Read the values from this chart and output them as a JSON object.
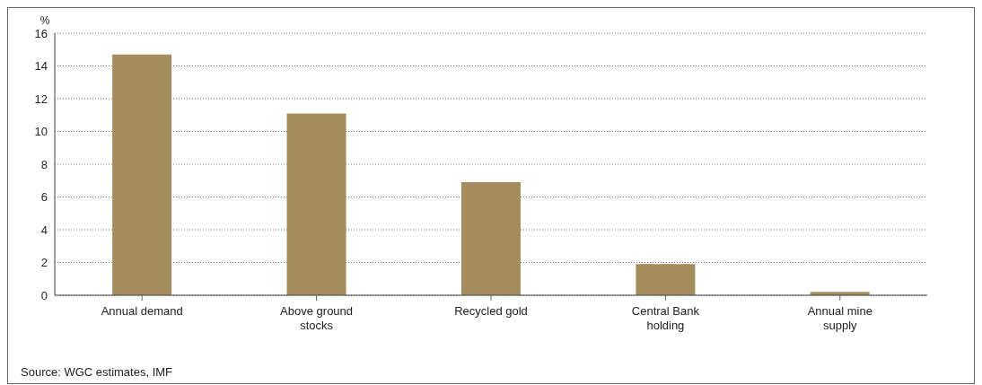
{
  "chart_data": {
    "type": "bar",
    "ylabel": "%",
    "categories": [
      "Annual demand",
      "Above ground stocks",
      "Recycled gold",
      "Central Bank holding",
      "Annual mine supply"
    ],
    "values": [
      14.7,
      11.1,
      6.9,
      1.9,
      0.2
    ],
    "color": "#a38d5e",
    "ylim": [
      0,
      16
    ],
    "yticks": [
      0,
      2,
      4,
      6,
      8,
      10,
      12,
      14,
      16
    ],
    "grid": "y",
    "annotations": [
      "Source: WGC estimates, IMF"
    ]
  }
}
